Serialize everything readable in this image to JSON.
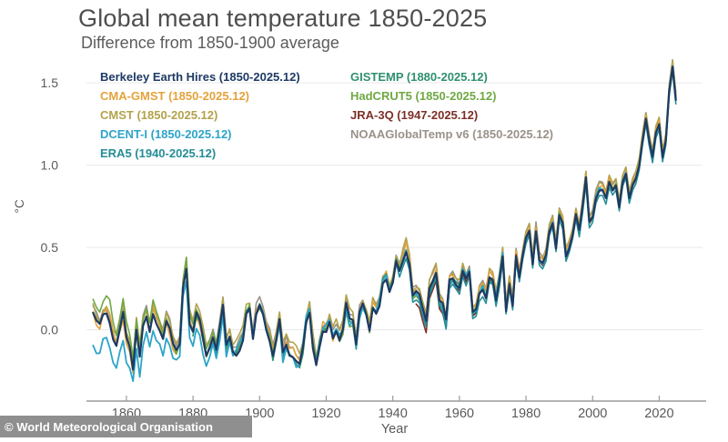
{
  "header": {
    "title": "Global mean temperature 1850-2025",
    "subtitle": "Difference from 1850-1900 average"
  },
  "watermark": {
    "text": "© World Meteorological Organisation"
  },
  "colors": {
    "title_text": "#4e4e4e",
    "subtitle_text": "#5c5c5c",
    "axis_text": "#5a5a5a",
    "grid_line": "#e9e9e9",
    "axis_line": "#9b9b9b",
    "watermark_bg": "#8f8f8f",
    "watermark_text": "#ffffff"
  },
  "chart_data": {
    "type": "line",
    "title": "Global mean temperature 1850-2025",
    "subtitle": "Difference from 1850-1900 average",
    "xlabel": "Year",
    "ylabel": "°C",
    "xlim": [
      1848,
      2033
    ],
    "ylim": [
      -0.433,
      1.672
    ],
    "grid": "horizontal-only",
    "legend_position": "top-left-inside",
    "x_ticks": [
      1860,
      1880,
      1900,
      1920,
      1940,
      1960,
      1980,
      2000,
      2020
    ],
    "y_ticks": [
      {
        "v": 0.0,
        "label": "0.0"
      },
      {
        "v": 0.5,
        "label": "0.5"
      },
      {
        "v": 1.0,
        "label": "1.0"
      },
      {
        "v": 1.5,
        "label": "1.5"
      }
    ],
    "baseline": {
      "description": "Consensus annual global mean temperature anomaly (°C vs 1850-1900), read off chart",
      "start_year": 1850,
      "end_year": 2025,
      "values": [
        0.1,
        0.05,
        0.02,
        0.08,
        0.1,
        0.05,
        -0.05,
        -0.1,
        0.0,
        0.1,
        -0.05,
        -0.12,
        -0.25,
        0.0,
        -0.15,
        0.05,
        0.1,
        0.0,
        0.1,
        0.05,
        0.0,
        -0.05,
        0.05,
        0.0,
        -0.1,
        -0.15,
        -0.1,
        0.25,
        0.38,
        0.05,
        0.0,
        0.1,
        0.05,
        -0.05,
        -0.15,
        -0.1,
        -0.05,
        -0.12,
        0.0,
        0.15,
        -0.1,
        -0.05,
        -0.15,
        -0.15,
        -0.1,
        -0.05,
        0.1,
        0.12,
        -0.05,
        0.1,
        0.15,
        0.1,
        0.0,
        -0.05,
        -0.15,
        -0.05,
        0.05,
        -0.15,
        -0.1,
        -0.15,
        -0.15,
        -0.18,
        -0.2,
        -0.12,
        0.05,
        0.1,
        -0.1,
        -0.22,
        -0.1,
        0.0,
        0.0,
        0.05,
        -0.05,
        0.0,
        -0.05,
        0.0,
        0.15,
        0.05,
        0.05,
        -0.1,
        0.1,
        0.15,
        0.1,
        0.0,
        0.15,
        0.1,
        0.15,
        0.28,
        0.32,
        0.25,
        0.3,
        0.42,
        0.35,
        0.42,
        0.48,
        0.4,
        0.2,
        0.22,
        0.2,
        0.12,
        0.05,
        0.25,
        0.3,
        0.35,
        0.18,
        0.15,
        0.05,
        0.3,
        0.32,
        0.28,
        0.25,
        0.35,
        0.3,
        0.35,
        0.1,
        0.12,
        0.22,
        0.25,
        0.2,
        0.32,
        0.3,
        0.18,
        0.3,
        0.45,
        0.12,
        0.28,
        0.15,
        0.45,
        0.32,
        0.45,
        0.55,
        0.6,
        0.4,
        0.6,
        0.42,
        0.4,
        0.45,
        0.6,
        0.65,
        0.5,
        0.7,
        0.65,
        0.45,
        0.5,
        0.58,
        0.7,
        0.6,
        0.75,
        0.92,
        0.65,
        0.68,
        0.8,
        0.85,
        0.85,
        0.8,
        0.9,
        0.85,
        0.88,
        0.75,
        0.9,
        0.95,
        0.8,
        0.88,
        0.92,
        1.0,
        1.15,
        1.28,
        1.15,
        1.05,
        1.2,
        1.25,
        1.05,
        1.15,
        1.45,
        1.6,
        1.4
      ]
    },
    "series": [
      {
        "name": "berkeley-earth-hires",
        "label": "Berkeley Earth Hires (1850-2025.12)",
        "color": "#1d3a63",
        "start_year": 1850,
        "end_year": 2025,
        "bias": 0.0,
        "amp": 0.04,
        "seed": 11,
        "width": 2.2,
        "draw_order": 9
      },
      {
        "name": "cma-gmst",
        "label": "CMA-GMST (1850-2025.12)",
        "color": "#e3a33c",
        "start_year": 1850,
        "end_year": 2025,
        "bias": 0.02,
        "amp": 0.07,
        "seed": 22,
        "width": 1.6,
        "draw_order": 3
      },
      {
        "name": "cmst",
        "label": "CMST (1850-2025.12)",
        "color": "#b2a24b",
        "start_year": 1850,
        "end_year": 2025,
        "bias": 0.04,
        "amp": 0.06,
        "seed": 33,
        "width": 1.6,
        "draw_order": 2
      },
      {
        "name": "dcent-i",
        "label": "DCENT-I (1850-2025.12)",
        "color": "#2da4c8",
        "start_year": 1850,
        "end_year": 2025,
        "bias": -0.17,
        "bias_end_year": 1900,
        "amp": 0.08,
        "seed": 44,
        "width": 1.8,
        "draw_order": 7
      },
      {
        "name": "era5",
        "label": "ERA5 (1940-2025.12)",
        "color": "#258d97",
        "start_year": 1940,
        "end_year": 2025,
        "bias": -0.03,
        "amp": 0.04,
        "seed": 55,
        "width": 1.6,
        "draw_order": 8
      },
      {
        "name": "gistemp",
        "label": "GISTEMP (1880-2025.12)",
        "color": "#2f9070",
        "start_year": 1880,
        "end_year": 2025,
        "bias": 0.0,
        "amp": 0.05,
        "seed": 66,
        "width": 1.6,
        "draw_order": 5
      },
      {
        "name": "hadcrut5",
        "label": "HadCRUT5 (1850-2025.12)",
        "color": "#70a844",
        "start_year": 1850,
        "end_year": 2025,
        "bias": 0.1,
        "bias_end_year": 1900,
        "amp": 0.06,
        "seed": 77,
        "width": 1.6,
        "draw_order": 4
      },
      {
        "name": "jra-3q",
        "label": "JRA-3Q (1947-2025.12)",
        "color": "#7c2f27",
        "start_year": 1947,
        "end_year": 2025,
        "bias": -0.07,
        "bias_end_year": 1965,
        "amp": 0.04,
        "seed": 88,
        "width": 1.6,
        "draw_order": 6
      },
      {
        "name": "noaa-globaltemp-v6",
        "label": "NOAAGlobalTemp v6 (1850-2025.12)",
        "color": "#9a9289",
        "start_year": 1850,
        "end_year": 2025,
        "bias": 0.04,
        "amp": 0.05,
        "seed": 99,
        "width": 1.6,
        "draw_order": 1
      }
    ],
    "legend_columns": [
      [
        0,
        1,
        2,
        3,
        4
      ],
      [
        5,
        6,
        7,
        8
      ]
    ]
  }
}
